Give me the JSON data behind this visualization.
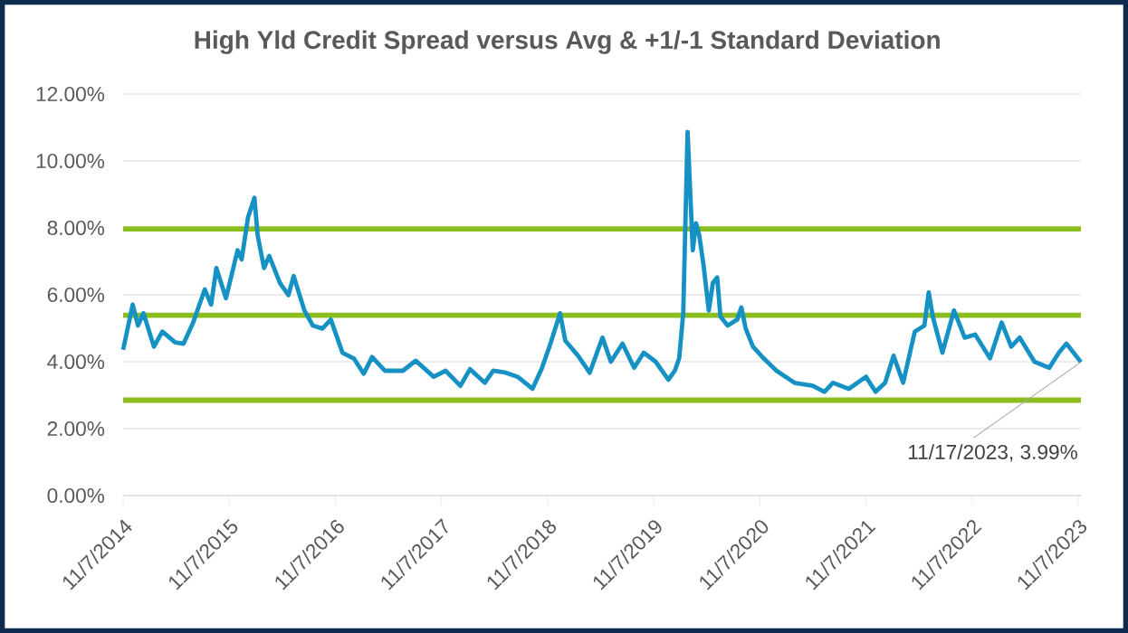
{
  "chart_data": {
    "type": "line",
    "title": "High Yld Credit Spread versus Avg & +1/-1 Standard Deviation",
    "x": [
      "2014-11-07",
      "2014-12-10",
      "2014-12-28",
      "2015-01-16",
      "2015-02-21",
      "2015-03-22",
      "2015-05-05",
      "2015-06-03",
      "2015-07-06",
      "2015-08-15",
      "2015-09-06",
      "2015-09-24",
      "2015-10-27",
      "2015-12-06",
      "2015-12-20",
      "2016-01-11",
      "2016-02-02",
      "2016-02-13",
      "2016-03-06",
      "2016-03-24",
      "2016-04-30",
      "2016-05-29",
      "2016-06-16",
      "2016-07-23",
      "2016-08-21",
      "2016-09-23",
      "2016-10-22",
      "2016-12-01",
      "2017-01-10",
      "2017-02-12",
      "2017-03-13",
      "2017-04-26",
      "2017-06-27",
      "2017-08-10",
      "2017-10-11",
      "2017-11-21",
      "2018-01-11",
      "2018-02-13",
      "2018-04-05",
      "2018-05-04",
      "2018-06-17",
      "2018-07-27",
      "2018-09-16",
      "2018-10-19",
      "2018-11-17",
      "2018-12-20",
      "2019-01-07",
      "2019-02-20",
      "2019-04-01",
      "2019-05-15",
      "2019-06-13",
      "2019-07-23",
      "2019-09-01",
      "2019-10-04",
      "2019-11-14",
      "2019-12-28",
      "2020-01-19",
      "2020-02-03",
      "2020-02-17",
      "2020-02-28",
      "2020-03-03",
      "2020-03-14",
      "2020-03-21",
      "2020-04-01",
      "2020-04-12",
      "2020-04-27",
      "2020-05-15",
      "2020-05-29",
      "2020-06-13",
      "2020-06-24",
      "2020-07-19",
      "2020-08-21",
      "2020-09-04",
      "2020-09-19",
      "2020-10-14",
      "2020-11-20",
      "2021-01-03",
      "2021-03-06",
      "2021-05-08",
      "2021-06-17",
      "2021-07-16",
      "2021-09-09",
      "2021-11-07",
      "2021-12-10",
      "2022-01-12",
      "2022-02-10",
      "2022-03-15",
      "2022-04-24",
      "2022-05-27",
      "2022-06-11",
      "2022-06-25",
      "2022-07-28",
      "2022-09-06",
      "2022-10-13",
      "2022-11-18",
      "2023-01-08",
      "2023-02-17",
      "2023-03-22",
      "2023-04-20",
      "2023-06-10",
      "2023-07-31",
      "2023-09-02",
      "2023-09-28",
      "2023-11-17"
    ],
    "series": [
      {
        "color": "#1591c4",
        "values": [
          4.36,
          5.71,
          5.08,
          5.45,
          4.45,
          4.9,
          4.58,
          4.54,
          5.17,
          6.16,
          5.71,
          6.8,
          5.9,
          7.33,
          7.06,
          8.32,
          8.9,
          7.78,
          6.8,
          7.16,
          6.35,
          5.99,
          6.56,
          5.53,
          5.08,
          4.99,
          5.26,
          4.27,
          4.09,
          3.64,
          4.14,
          3.73,
          3.73,
          4.03,
          3.55,
          3.73,
          3.28,
          3.78,
          3.37,
          3.73,
          3.67,
          3.55,
          3.19,
          3.82,
          4.54,
          5.45,
          4.63,
          4.18,
          3.67,
          4.72,
          4.0,
          4.54,
          3.82,
          4.27,
          4.0,
          3.46,
          3.73,
          4.1,
          5.45,
          9.41,
          10.87,
          8.68,
          7.33,
          8.14,
          7.78,
          6.88,
          5.53,
          6.35,
          6.52,
          5.35,
          5.08,
          5.26,
          5.62,
          4.99,
          4.45,
          4.1,
          3.73,
          3.37,
          3.28,
          3.1,
          3.37,
          3.19,
          3.55,
          3.1,
          3.37,
          4.18,
          3.37,
          4.9,
          5.08,
          6.07,
          5.35,
          4.27,
          5.53,
          4.72,
          4.81,
          4.1,
          5.17,
          4.45,
          4.72,
          4.0,
          3.82,
          4.27,
          4.54,
          3.99
        ]
      }
    ],
    "xlim": [
      "2014-11-07",
      "2023-11-17"
    ],
    "xticks": [
      {
        "value": "2014-11-07",
        "label": "11/7/2014"
      },
      {
        "value": "2015-11-07",
        "label": "11/7/2015"
      },
      {
        "value": "2016-11-07",
        "label": "11/7/2016"
      },
      {
        "value": "2017-11-07",
        "label": "11/7/2017"
      },
      {
        "value": "2018-11-07",
        "label": "11/7/2018"
      },
      {
        "value": "2019-11-07",
        "label": "11/7/2019"
      },
      {
        "value": "2020-11-07",
        "label": "11/7/2020"
      },
      {
        "value": "2021-11-07",
        "label": "11/7/2021"
      },
      {
        "value": "2022-11-07",
        "label": "11/7/2022"
      },
      {
        "value": "2023-11-07",
        "label": "11/7/2023"
      }
    ],
    "ylim": [
      0,
      12
    ],
    "yticks": [
      {
        "value": 0,
        "label": "0.00%"
      },
      {
        "value": 2,
        "label": "2.00%"
      },
      {
        "value": 4,
        "label": "4.00%"
      },
      {
        "value": 6,
        "label": "6.00%"
      },
      {
        "value": 8,
        "label": "8.00%"
      },
      {
        "value": 10,
        "label": "10.00%"
      },
      {
        "value": 12,
        "label": "12.00%"
      }
    ],
    "ref_lines": [
      {
        "axis": "y",
        "value": 7.97,
        "color": "#8cbd1e"
      },
      {
        "axis": "y",
        "value": 5.39,
        "color": "#8cbd1e"
      },
      {
        "axis": "y",
        "value": 2.85,
        "color": "#8cbd1e"
      }
    ],
    "annotations": [
      {
        "text": "11/17/2023, 3.99%",
        "x": "2023-11-17",
        "y": 3.99
      }
    ],
    "grid": "y",
    "marker": "none",
    "line_style": "solid"
  }
}
